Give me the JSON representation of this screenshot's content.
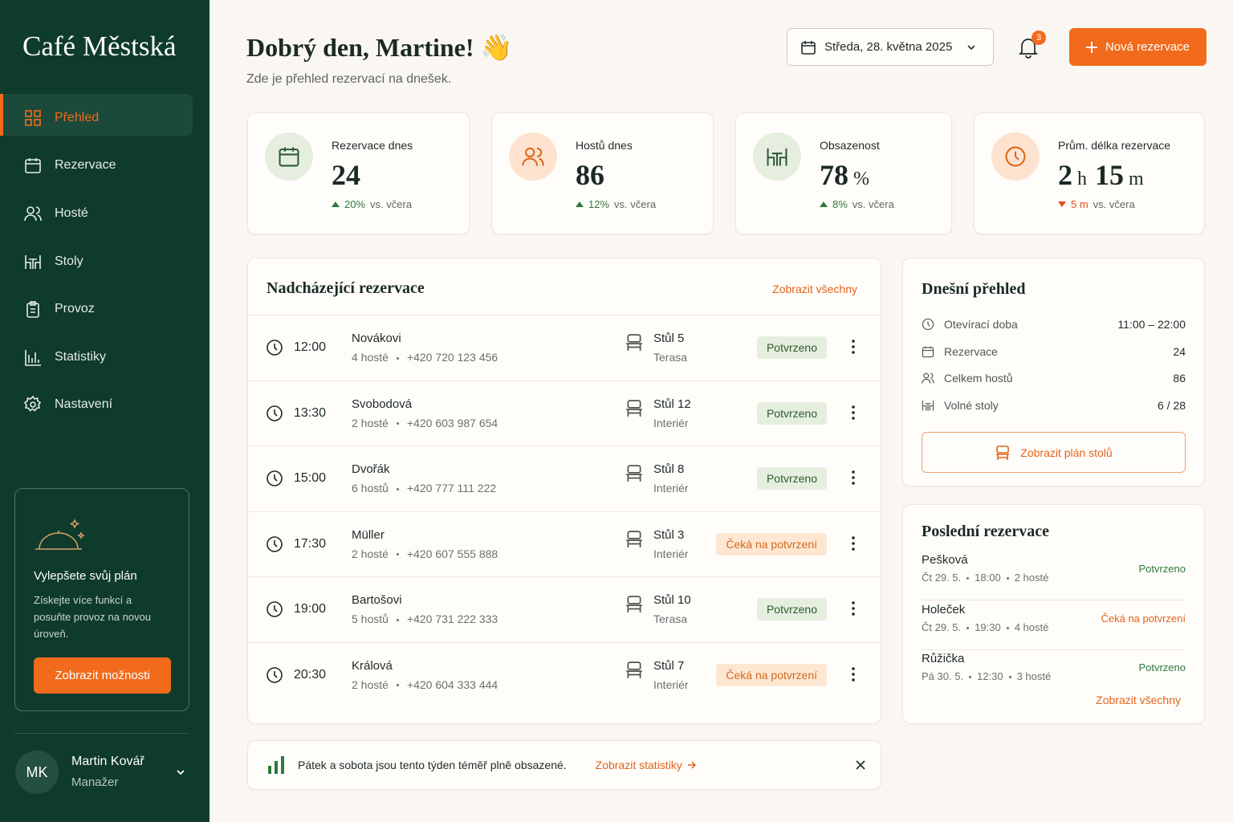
{
  "sidebar": {
    "brand": "Café Městská",
    "nav": [
      {
        "label": "Přehled",
        "icon": "grid",
        "active": true
      },
      {
        "label": "Rezervace",
        "icon": "calendar"
      },
      {
        "label": "Hosté",
        "icon": "users"
      },
      {
        "label": "Stoly",
        "icon": "table"
      },
      {
        "label": "Provoz",
        "icon": "clipboard"
      },
      {
        "label": "Statistiky",
        "icon": "bars"
      },
      {
        "label": "Nastavení",
        "icon": "gear"
      }
    ],
    "upgrade": {
      "title": "Vylepšete svůj plán",
      "text": "Získejte více funkcí a posuňte provoz na novou úroveň.",
      "button": "Zobrazit možnosti"
    },
    "user": {
      "initials": "MK",
      "name": "Martin Kovář",
      "role": "Manažer"
    }
  },
  "header": {
    "greeting": "Dobrý den, Martine! 👋",
    "subtitle": "Zde je přehled rezervací na dnešek.",
    "date": "Středa, 28. května 2025",
    "notifications": 3,
    "new_button": "Nová rezervace"
  },
  "stats": [
    {
      "label": "Rezervace dnes",
      "parts": [
        {
          "num": 24
        }
      ],
      "change": "20%",
      "compare": "vs. včera",
      "trend": "up",
      "icon": "calendar",
      "tone": "green"
    },
    {
      "label": "Hostů dnes",
      "parts": [
        {
          "num": 86
        }
      ],
      "change": "12%",
      "compare": "vs. včera",
      "trend": "up",
      "icon": "users",
      "tone": "orange"
    },
    {
      "label": "Obsazenost",
      "parts": [
        {
          "num": 78,
          "unit": "%"
        }
      ],
      "change": "8%",
      "compare": "vs. včera",
      "trend": "up",
      "icon": "table",
      "tone": "green"
    },
    {
      "label": "Prům. délka rezervace",
      "parts": [
        {
          "num": 2,
          "unit": "h"
        },
        {
          "num": 15,
          "unit": "m"
        }
      ],
      "change": "5 m",
      "compare": "vs. včera",
      "trend": "down",
      "icon": "clock",
      "tone": "orange"
    }
  ],
  "upcoming": {
    "title": "Nadcházející rezervace",
    "link": "Zobrazit všechny",
    "rows": [
      {
        "time": "12:00",
        "name": "Novákovi",
        "guests": "4 hosté",
        "phone": "+420 720 123 456",
        "table": "Stůl 5",
        "area": "Terasa",
        "status": "Potvrzeno",
        "state": "confirmed"
      },
      {
        "time": "13:30",
        "name": "Svobodová",
        "guests": "2 hosté",
        "phone": "+420 603 987 654",
        "table": "Stůl 12",
        "area": "Interiér",
        "status": "Potvrzeno",
        "state": "confirmed"
      },
      {
        "time": "15:00",
        "name": "Dvořák",
        "guests": "6 hostů",
        "phone": "+420 777 111 222",
        "table": "Stůl 8",
        "area": "Interiér",
        "status": "Potvrzeno",
        "state": "confirmed"
      },
      {
        "time": "17:30",
        "name": "Müller",
        "guests": "2 hosté",
        "phone": "+420 607 555 888",
        "table": "Stůl 3",
        "area": "Interiér",
        "status": "Čeká na potvrzení",
        "state": "pending"
      },
      {
        "time": "19:00",
        "name": "Bartošovi",
        "guests": "5 hostů",
        "phone": "+420 731 222 333",
        "table": "Stůl 10",
        "area": "Terasa",
        "status": "Potvrzeno",
        "state": "confirmed"
      },
      {
        "time": "20:30",
        "name": "Králová",
        "guests": "2 hosté",
        "phone": "+420 604 333 444",
        "table": "Stůl 7",
        "area": "Interiér",
        "status": "Čeká na potvrzení",
        "state": "pending"
      }
    ]
  },
  "today": {
    "title": "Dnešní přehled",
    "items": [
      {
        "label": "Otevírací doba",
        "value": "11:00 – 22:00",
        "icon": "clock"
      },
      {
        "label": "Rezervace",
        "value": 24,
        "icon": "calendar"
      },
      {
        "label": "Celkem hostů",
        "value": 86,
        "icon": "users"
      },
      {
        "label": "Volné stoly",
        "value": "6 / 28",
        "icon": "table"
      }
    ],
    "button": "Zobrazit plán stolů"
  },
  "recent": {
    "title": "Poslední rezervace",
    "link": "Zobrazit všechny",
    "items": [
      {
        "name": "Pešková",
        "date": "Čt 29. 5.",
        "time": "18:00",
        "guests": "2 hosté",
        "status": "Potvrzeno",
        "state": "confirmed"
      },
      {
        "name": "Holeček",
        "date": "Čt 29. 5.",
        "time": "19:30",
        "guests": "4 hosté",
        "status": "Čeká na potvrzení",
        "state": "pending"
      },
      {
        "name": "Růžička",
        "date": "Pá 30. 5.",
        "time": "12:30",
        "guests": "3 hosté",
        "status": "Potvrzeno",
        "state": "confirmed"
      }
    ]
  },
  "banner": {
    "text": "Pátek a sobota jsou tento týden téměř plně obsazené.",
    "link": "Zobrazit statistiky"
  }
}
